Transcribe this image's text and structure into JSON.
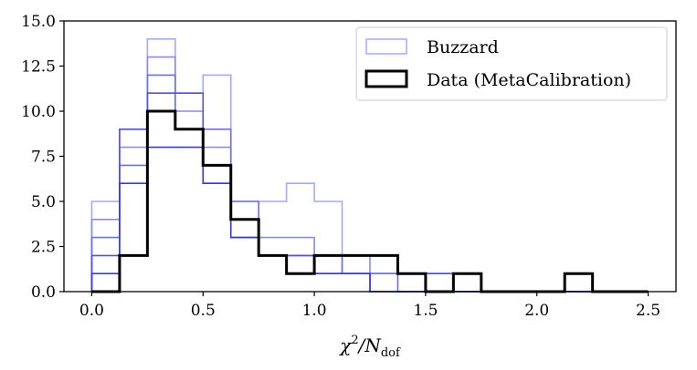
{
  "chart_data": {
    "type": "histogram",
    "bin_edges": [
      0.0,
      0.125,
      0.25,
      0.375,
      0.5,
      0.625,
      0.75,
      0.875,
      1.0,
      1.125,
      1.25,
      1.375,
      1.5,
      1.625,
      1.75,
      1.875,
      2.0,
      2.125,
      2.25,
      2.375,
      2.5
    ],
    "xlabel_main": "χ",
    "xlabel_sup": "2",
    "xlabel_mid": "/N",
    "xlabel_sub": "dof",
    "ylabel": "",
    "xlim": [
      -0.125,
      2.625
    ],
    "ylim": [
      0,
      15
    ],
    "xticks": [
      0.0,
      0.5,
      1.0,
      1.5,
      2.0,
      2.5
    ],
    "xtick_labels": [
      "0.0",
      "0.5",
      "1.0",
      "1.5",
      "2.0",
      "2.5"
    ],
    "yticks": [
      0.0,
      2.5,
      5.0,
      7.5,
      10.0,
      12.5,
      15.0
    ],
    "ytick_labels": [
      "0.0",
      "2.5",
      "5.0",
      "7.5",
      "10.0",
      "12.5",
      "15.0"
    ],
    "legend_position": "top-right",
    "series": [
      {
        "name": "Buzzard",
        "values": [
          5,
          9,
          14,
          11,
          12,
          5,
          5,
          6,
          5,
          1,
          1,
          1,
          1,
          0,
          0,
          0,
          0,
          0,
          0,
          0
        ],
        "color": "#a8a8f0"
      },
      {
        "name": "Buzzard",
        "values": [
          4,
          8,
          13,
          10,
          8,
          4,
          3,
          3,
          2,
          2,
          1,
          1,
          1,
          0,
          0,
          0,
          0,
          0,
          0,
          0
        ],
        "color": "#8a8aec"
      },
      {
        "name": "Buzzard",
        "values": [
          3,
          7,
          12,
          9,
          9,
          5,
          2,
          2,
          2,
          1,
          1,
          0,
          0,
          0,
          0,
          0,
          0,
          0,
          0,
          0
        ],
        "color": "#6e6ee8"
      },
      {
        "name": "Buzzard",
        "values": [
          2,
          9,
          11,
          11,
          6,
          3,
          2,
          2,
          1,
          1,
          0,
          0,
          1,
          0,
          0,
          0,
          0,
          0,
          0,
          0
        ],
        "color": "#5252e0"
      },
      {
        "name": "Buzzard",
        "values": [
          1,
          6,
          8,
          8,
          6,
          3,
          2,
          1,
          1,
          1,
          0,
          0,
          0,
          0,
          0,
          0,
          0,
          0,
          0,
          0
        ],
        "color": "#3a3ad8"
      },
      {
        "name": "Data (MetaCalibration)",
        "values": [
          0,
          2,
          10,
          9,
          7,
          4,
          2,
          1,
          2,
          2,
          2,
          1,
          0,
          1,
          0,
          0,
          0,
          1,
          0,
          0
        ],
        "color": "#000000"
      }
    ],
    "legend": [
      {
        "label": "Buzzard",
        "color": "#a8a8f0"
      },
      {
        "label": "Data (MetaCalibration)",
        "color": "#000000"
      }
    ]
  }
}
